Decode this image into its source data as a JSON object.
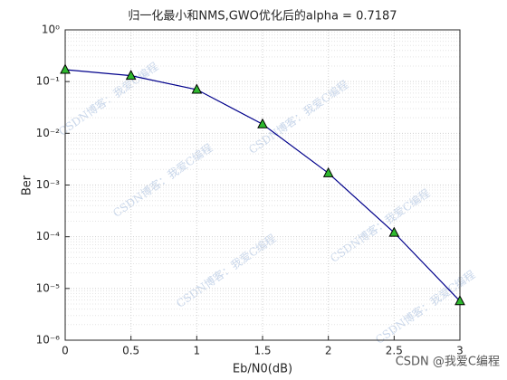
{
  "chart_data": {
    "type": "line",
    "title": "归一化最小和NMS,GWO优化后的alpha = 0.7187",
    "x_label": "Eb/N0(dB)",
    "y_label": "Ber",
    "x": [
      0,
      0.5,
      1,
      1.5,
      2,
      2.5,
      3
    ],
    "series": [
      {
        "name": "Ber",
        "color": "#00008b",
        "marker_color": "#2eb82e",
        "values": [
          0.17,
          0.13,
          0.07,
          0.015,
          0.0017,
          0.00012,
          5.7e-06
        ]
      }
    ],
    "xlim": [
      0,
      3
    ],
    "xticks": [
      0,
      0.5,
      1,
      1.5,
      2,
      2.5,
      3
    ],
    "ylim": [
      1e-06,
      1
    ],
    "y_scale": "log",
    "yticks": [
      {
        "value": 1e-06,
        "label": "10⁻⁶"
      },
      {
        "value": 1e-05,
        "label": "10⁻⁵"
      },
      {
        "value": 0.0001,
        "label": "10⁻⁴"
      },
      {
        "value": 0.001,
        "label": "10⁻³"
      },
      {
        "value": 0.01,
        "label": "10⁻²"
      },
      {
        "value": 0.1,
        "label": "10⁻¹"
      },
      {
        "value": 1,
        "label": "10⁰"
      }
    ],
    "grid": true,
    "minor_grid": true,
    "watermark": "CSDN博客：我爱C编程",
    "attribution": "CSDN @我爱C编程"
  }
}
